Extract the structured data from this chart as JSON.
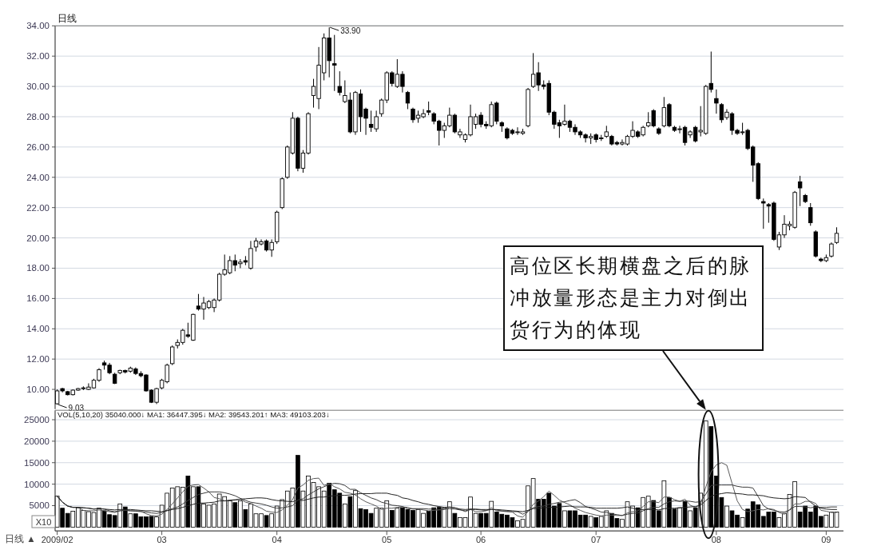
{
  "chart_data": [
    {
      "type": "candlestick",
      "title": "日线",
      "categories": [
        "2009/02",
        null,
        null,
        null,
        null,
        null,
        null,
        null,
        null,
        null,
        null,
        null,
        null,
        null,
        null,
        null,
        null,
        null,
        null,
        null,
        "03",
        null,
        null,
        null,
        null,
        null,
        null,
        null,
        null,
        null,
        null,
        null,
        null,
        null,
        null,
        null,
        null,
        null,
        null,
        null,
        null,
        null,
        "04",
        null,
        null,
        null,
        null,
        null,
        null,
        null,
        null,
        null,
        null,
        null,
        null,
        null,
        null,
        null,
        null,
        null,
        null,
        null,
        null,
        "05",
        null,
        null,
        null,
        null,
        null,
        null,
        null,
        null,
        null,
        null,
        null,
        null,
        null,
        null,
        null,
        null,
        null,
        "06",
        null,
        null,
        null,
        null,
        null,
        null,
        null,
        null,
        null,
        null,
        null,
        null,
        null,
        null,
        null,
        null,
        null,
        null,
        null,
        null,
        null,
        "07",
        null,
        null,
        null,
        null,
        null,
        null,
        null,
        null,
        null,
        null,
        null,
        null,
        null,
        null,
        null,
        null,
        null,
        null,
        null,
        null,
        null,
        null,
        "08",
        null,
        null,
        null,
        null,
        null,
        null,
        null,
        null,
        null,
        null,
        null,
        null,
        null,
        null,
        null,
        null,
        null,
        null,
        null,
        null,
        "09",
        null,
        null
      ],
      "ohlc": [
        [
          9.05,
          10.0,
          9.0,
          9.9
        ],
        [
          10.05,
          10.1,
          9.8,
          9.9
        ],
        [
          9.85,
          9.9,
          9.6,
          9.65
        ],
        [
          9.65,
          10.0,
          9.6,
          9.95
        ],
        [
          9.95,
          10.1,
          9.9,
          10.05
        ],
        [
          10.05,
          10.2,
          9.95,
          10.1
        ],
        [
          10.0,
          10.4,
          9.95,
          10.15
        ],
        [
          10.1,
          10.7,
          10.05,
          10.6
        ],
        [
          10.6,
          11.4,
          10.5,
          11.3
        ],
        [
          11.75,
          11.9,
          11.3,
          11.6
        ],
        [
          11.6,
          11.75,
          11.0,
          11.1
        ],
        [
          11.0,
          11.1,
          10.35,
          10.4
        ],
        [
          11.1,
          11.3,
          11.0,
          11.25
        ],
        [
          11.25,
          11.3,
          11.05,
          11.15
        ],
        [
          11.2,
          11.5,
          11.1,
          11.4
        ],
        [
          11.35,
          11.45,
          10.95,
          11.05
        ],
        [
          11.05,
          11.2,
          10.8,
          10.9
        ],
        [
          10.95,
          11.0,
          9.85,
          9.9
        ],
        [
          9.95,
          10.0,
          9.1,
          9.15
        ],
        [
          9.15,
          10.1,
          9.03,
          10.05
        ],
        [
          10.1,
          10.7,
          10.0,
          10.6
        ],
        [
          10.5,
          11.7,
          10.4,
          11.6
        ],
        [
          11.7,
          12.9,
          11.6,
          12.8
        ],
        [
          12.9,
          13.3,
          12.7,
          13.1
        ],
        [
          13.1,
          14.0,
          12.95,
          13.9
        ],
        [
          13.6,
          14.4,
          13.4,
          13.5
        ],
        [
          13.25,
          15.0,
          13.2,
          14.95
        ],
        [
          15.5,
          16.3,
          15.2,
          15.3
        ],
        [
          15.3,
          16.1,
          14.6,
          15.7
        ],
        [
          15.4,
          15.9,
          15.3,
          15.8
        ],
        [
          15.4,
          16.0,
          15.1,
          15.9
        ],
        [
          15.9,
          17.7,
          15.8,
          17.6
        ],
        [
          17.6,
          18.9,
          17.5,
          17.9
        ],
        [
          17.7,
          18.8,
          17.6,
          18.5
        ],
        [
          18.5,
          18.9,
          17.8,
          18.2
        ],
        [
          18.3,
          18.6,
          18.0,
          18.4
        ],
        [
          18.5,
          18.8,
          18.2,
          18.4
        ],
        [
          18.0,
          19.8,
          17.9,
          19.3
        ],
        [
          19.4,
          20.0,
          19.1,
          19.8
        ],
        [
          19.6,
          19.9,
          19.5,
          19.75
        ],
        [
          19.8,
          19.9,
          19.1,
          19.2
        ],
        [
          19.2,
          19.9,
          18.75,
          19.7
        ],
        [
          19.75,
          21.8,
          19.6,
          21.7
        ],
        [
          22.0,
          24.0,
          21.9,
          23.9
        ],
        [
          24.0,
          26.1,
          23.9,
          26.0
        ],
        [
          25.6,
          28.3,
          25.5,
          27.9
        ],
        [
          27.9,
          28.0,
          24.4,
          24.6
        ],
        [
          24.6,
          25.8,
          24.3,
          25.6
        ],
        [
          25.6,
          28.3,
          25.5,
          28.2
        ],
        [
          29.4,
          30.5,
          28.6,
          30.0
        ],
        [
          29.2,
          32.6,
          28.5,
          31.4
        ],
        [
          30.9,
          33.5,
          30.4,
          33.2
        ],
        [
          33.2,
          33.9,
          30.6,
          31.7
        ],
        [
          31.5,
          33.4,
          29.7,
          31.4
        ],
        [
          30.0,
          31.0,
          29.4,
          29.6
        ],
        [
          29.0,
          30.4,
          28.9,
          29.4
        ],
        [
          29.1,
          29.6,
          26.9,
          27.0
        ],
        [
          27.0,
          29.7,
          26.8,
          29.6
        ],
        [
          29.5,
          29.8,
          27.0,
          28.0
        ],
        [
          28.5,
          28.6,
          26.8,
          27.9
        ],
        [
          27.5,
          28.4,
          27.0,
          27.3
        ],
        [
          27.2,
          28.4,
          27.0,
          28.0
        ],
        [
          28.2,
          29.2,
          28.0,
          29.1
        ],
        [
          29.1,
          31.0,
          28.9,
          30.9
        ],
        [
          30.9,
          31.0,
          30.0,
          30.2
        ],
        [
          30.0,
          31.8,
          29.9,
          30.8
        ],
        [
          30.8,
          31.0,
          29.6,
          30.0
        ],
        [
          29.6,
          29.7,
          28.5,
          28.9
        ],
        [
          28.5,
          28.6,
          27.6,
          27.8
        ],
        [
          27.9,
          28.4,
          27.6,
          28.1
        ],
        [
          28.0,
          28.5,
          27.9,
          28.2
        ],
        [
          28.4,
          29.0,
          28.1,
          28.3
        ],
        [
          28.2,
          28.3,
          27.5,
          27.7
        ],
        [
          27.7,
          27.8,
          26.1,
          27.1
        ],
        [
          27.1,
          27.6,
          26.6,
          27.4
        ],
        [
          27.4,
          28.6,
          27.3,
          28.1
        ],
        [
          28.1,
          28.2,
          26.9,
          27.0
        ],
        [
          26.8,
          27.2,
          26.6,
          27.0
        ],
        [
          26.5,
          26.9,
          26.3,
          26.8
        ],
        [
          26.8,
          28.8,
          26.7,
          28.0
        ],
        [
          27.5,
          28.2,
          27.2,
          28.0
        ],
        [
          28.1,
          28.3,
          27.3,
          27.5
        ],
        [
          27.5,
          27.7,
          27.2,
          27.4
        ],
        [
          27.4,
          29.0,
          27.3,
          28.8
        ],
        [
          28.9,
          29.0,
          27.5,
          27.7
        ],
        [
          27.6,
          27.7,
          27.0,
          27.4
        ],
        [
          27.2,
          27.3,
          26.5,
          26.6
        ],
        [
          27.1,
          27.2,
          26.8,
          26.9
        ],
        [
          27.0,
          27.3,
          26.8,
          27.0
        ],
        [
          26.9,
          27.2,
          26.8,
          27.0
        ],
        [
          27.4,
          29.9,
          27.3,
          29.8
        ],
        [
          30.0,
          32.2,
          29.9,
          30.8
        ],
        [
          30.9,
          31.6,
          29.7,
          30.1
        ],
        [
          30.1,
          30.4,
          29.8,
          30.0
        ],
        [
          30.2,
          30.4,
          28.1,
          28.3
        ],
        [
          28.3,
          28.4,
          27.2,
          27.5
        ],
        [
          27.6,
          27.8,
          26.6,
          27.4
        ],
        [
          27.5,
          28.8,
          27.4,
          27.7
        ],
        [
          27.7,
          27.8,
          27.0,
          27.3
        ],
        [
          27.3,
          27.5,
          26.8,
          27.0
        ],
        [
          27.0,
          27.1,
          26.6,
          26.8
        ],
        [
          26.8,
          26.9,
          26.3,
          26.6
        ],
        [
          26.6,
          26.9,
          26.2,
          26.7
        ],
        [
          26.8,
          26.9,
          26.3,
          26.5
        ],
        [
          26.6,
          26.8,
          26.4,
          26.6
        ],
        [
          26.7,
          27.4,
          26.6,
          27.0
        ],
        [
          26.7,
          26.8,
          26.1,
          26.2
        ],
        [
          26.3,
          26.4,
          26.1,
          26.2
        ],
        [
          26.2,
          26.5,
          26.1,
          26.3
        ],
        [
          26.2,
          26.8,
          26.1,
          26.7
        ],
        [
          26.7,
          27.7,
          26.6,
          27.1
        ],
        [
          27.0,
          27.1,
          26.6,
          26.7
        ],
        [
          26.8,
          27.4,
          26.7,
          27.3
        ],
        [
          27.4,
          28.3,
          27.3,
          27.6
        ],
        [
          28.4,
          28.5,
          27.3,
          27.4
        ],
        [
          27.2,
          27.3,
          26.8,
          26.9
        ],
        [
          27.4,
          29.3,
          27.3,
          28.6
        ],
        [
          28.8,
          28.9,
          27.3,
          27.4
        ],
        [
          27.3,
          27.4,
          27.0,
          27.1
        ],
        [
          27.2,
          27.4,
          26.9,
          27.2
        ],
        [
          27.3,
          27.4,
          26.1,
          26.3
        ],
        [
          26.8,
          27.1,
          26.6,
          27.0
        ],
        [
          27.3,
          27.4,
          26.3,
          26.4
        ],
        [
          27.0,
          28.7,
          26.7,
          27.1
        ],
        [
          26.9,
          30.1,
          26.8,
          30.0
        ],
        [
          30.2,
          32.3,
          29.6,
          29.8
        ],
        [
          29.2,
          29.8,
          28.2,
          28.9
        ],
        [
          28.8,
          28.9,
          27.6,
          27.8
        ],
        [
          27.95,
          28.5,
          27.8,
          28.3
        ],
        [
          28.2,
          28.3,
          26.8,
          27.1
        ],
        [
          27.1,
          27.2,
          26.8,
          26.9
        ],
        [
          27.0,
          27.6,
          26.8,
          27.0
        ],
        [
          27.1,
          27.2,
          25.8,
          25.9
        ],
        [
          26.0,
          26.1,
          23.7,
          24.8
        ],
        [
          24.9,
          25.0,
          22.5,
          22.6
        ],
        [
          22.4,
          22.6,
          20.6,
          22.3
        ],
        [
          22.2,
          22.3,
          21.0,
          22.1
        ],
        [
          22.3,
          22.4,
          19.8,
          19.9
        ],
        [
          19.4,
          20.4,
          19.2,
          20.2
        ],
        [
          20.2,
          21.5,
          20.0,
          20.9
        ],
        [
          20.8,
          21.1,
          20.5,
          20.9
        ],
        [
          20.7,
          23.1,
          20.6,
          23.0
        ],
        [
          23.7,
          24.1,
          22.1,
          23.3
        ],
        [
          22.8,
          22.9,
          22.3,
          22.4
        ],
        [
          22.0,
          22.3,
          20.8,
          21.0
        ],
        [
          20.4,
          20.5,
          18.7,
          18.8
        ],
        [
          18.6,
          18.7,
          18.4,
          18.5
        ],
        [
          18.5,
          18.9,
          18.4,
          18.7
        ],
        [
          18.8,
          19.7,
          18.7,
          19.6
        ],
        [
          19.7,
          20.7,
          19.6,
          20.3
        ]
      ],
      "ylim": [
        8.7,
        34.0
      ],
      "yticks": [
        {
          "value": 10,
          "label": "10.00"
        },
        {
          "value": 12,
          "label": "12.00"
        },
        {
          "value": 14,
          "label": "14.00"
        },
        {
          "value": 16,
          "label": "16.00"
        },
        {
          "value": 18,
          "label": "18.00"
        },
        {
          "value": 20,
          "label": "20.00"
        },
        {
          "value": 22,
          "label": "22.00"
        },
        {
          "value": 24,
          "label": "24.00"
        },
        {
          "value": 26,
          "label": "26.00"
        },
        {
          "value": 28,
          "label": "28.00"
        },
        {
          "value": 30,
          "label": "30.00"
        },
        {
          "value": 32,
          "label": "32.00"
        },
        {
          "value": 34,
          "label": "34.00"
        }
      ],
      "grid": "y",
      "tick_labels": "y",
      "annotations": [
        "33.90",
        "9.03"
      ]
    },
    {
      "type": "bar",
      "title": "VOL(5,10,20) 35040.000↓ MA1: 36447.395↓ MA2: 39543.201↑ MA3: 49103.203↓",
      "categories": [
        "2009/02",
        null,
        null,
        null,
        null,
        null,
        null,
        null,
        null,
        null,
        null,
        null,
        null,
        null,
        null,
        null,
        null,
        null,
        null,
        null,
        "03",
        null,
        null,
        null,
        null,
        null,
        null,
        null,
        null,
        null,
        null,
        null,
        null,
        null,
        null,
        null,
        null,
        null,
        null,
        null,
        null,
        null,
        "04",
        null,
        null,
        null,
        null,
        null,
        null,
        null,
        null,
        null,
        null,
        null,
        null,
        null,
        null,
        null,
        null,
        null,
        null,
        null,
        null,
        "05",
        null,
        null,
        null,
        null,
        null,
        null,
        null,
        null,
        null,
        null,
        null,
        null,
        null,
        null,
        null,
        null,
        null,
        "06",
        null,
        null,
        null,
        null,
        null,
        null,
        null,
        null,
        null,
        null,
        null,
        null,
        null,
        null,
        null,
        null,
        null,
        null,
        null,
        null,
        null,
        "07",
        null,
        null,
        null,
        null,
        null,
        null,
        null,
        null,
        null,
        null,
        null,
        null,
        null,
        null,
        null,
        null,
        null,
        null,
        null,
        null,
        null,
        null,
        "08",
        null,
        null,
        null,
        null,
        null,
        null,
        null,
        null,
        null,
        null,
        null,
        null,
        null,
        null,
        null,
        null,
        null,
        null,
        null,
        null,
        "09",
        null,
        null
      ],
      "series": [
        {
          "type": "bar",
          "values": [
            7200,
            4400,
            3200,
            3700,
            4500,
            3900,
            3600,
            3400,
            4400,
            3800,
            2900,
            2700,
            5400,
            4700,
            3100,
            3100,
            2400,
            2400,
            2500,
            2400,
            5100,
            7900,
            9100,
            9400,
            9300,
            11900,
            9400,
            9400,
            5400,
            5100,
            5400,
            7700,
            7100,
            6100,
            5700,
            6100,
            4100,
            5400,
            3100,
            3100,
            2700,
            3100,
            4900,
            6400,
            8400,
            9100,
            16700,
            8400,
            11900,
            10400,
            9400,
            8400,
            10200,
            8700,
            7900,
            5400,
            7100,
            8500,
            4300,
            4100,
            3200,
            4400,
            4400,
            6100,
            3900,
            4400,
            4500,
            4100,
            3900,
            4100,
            3200,
            3700,
            4500,
            4600,
            4500,
            5900,
            3200,
            2200,
            2200,
            7000,
            3200,
            3200,
            3200,
            6000,
            3500,
            3000,
            2800,
            2200,
            1500,
            1800,
            9600,
            11300,
            6500,
            6500,
            7900,
            4900,
            5500,
            3800,
            3800,
            3800,
            2800,
            2800,
            2500,
            2200,
            2500,
            3800,
            3200,
            2000,
            1800,
            5900,
            4900,
            4500,
            6900,
            7200,
            6200,
            3800,
            10800,
            6900,
            4200,
            4500,
            5900,
            3800,
            4500,
            7900,
            24700,
            23400,
            11900,
            6900,
            4900,
            3800,
            2800,
            2200,
            4200,
            5900,
            5200,
            2500,
            3500,
            3500,
            2200,
            3200,
            7600,
            10600,
            3500,
            4900,
            3500,
            4900,
            2500,
            2800,
            3500,
            3500
          ],
          "colors": [
            "#ffffff",
            "#000000",
            "#000000",
            "#ffffff",
            "#ffffff",
            "#ffffff",
            "#ffffff",
            "#ffffff",
            "#ffffff",
            "#000000",
            "#000000",
            "#000000",
            "#ffffff",
            "#000000",
            "#ffffff",
            "#000000",
            "#000000",
            "#000000",
            "#000000",
            "#ffffff",
            "#ffffff",
            "#ffffff",
            "#ffffff",
            "#ffffff",
            "#ffffff",
            "#000000",
            "#ffffff",
            "#000000",
            "#ffffff",
            "#ffffff",
            "#ffffff",
            "#ffffff",
            "#ffffff",
            "#ffffff",
            "#000000",
            "#ffffff",
            "#000000",
            "#ffffff",
            "#ffffff",
            "#ffffff",
            "#000000",
            "#ffffff",
            "#ffffff",
            "#ffffff",
            "#ffffff",
            "#ffffff",
            "#000000",
            "#ffffff",
            "#ffffff",
            "#ffffff",
            "#ffffff",
            "#ffffff",
            "#000000",
            "#000000",
            "#000000",
            "#ffffff",
            "#000000",
            "#ffffff",
            "#000000",
            "#000000",
            "#000000",
            "#ffffff",
            "#ffffff",
            "#ffffff",
            "#000000",
            "#ffffff",
            "#000000",
            "#000000",
            "#000000",
            "#ffffff",
            "#ffffff",
            "#000000",
            "#000000",
            "#000000",
            "#ffffff",
            "#ffffff",
            "#000000",
            "#ffffff",
            "#ffffff",
            "#ffffff",
            "#ffffff",
            "#000000",
            "#000000",
            "#ffffff",
            "#000000",
            "#000000",
            "#000000",
            "#000000",
            "#ffffff",
            "#ffffff",
            "#ffffff",
            "#ffffff",
            "#000000",
            "#000000",
            "#000000",
            "#000000",
            "#000000",
            "#ffffff",
            "#000000",
            "#000000",
            "#000000",
            "#000000",
            "#ffffff",
            "#000000",
            "#ffffff",
            "#ffffff",
            "#000000",
            "#000000",
            "#ffffff",
            "#ffffff",
            "#ffffff",
            "#000000",
            "#ffffff",
            "#ffffff",
            "#000000",
            "#000000",
            "#ffffff",
            "#000000",
            "#000000",
            "#ffffff",
            "#000000",
            "#ffffff",
            "#000000",
            "#ffffff",
            "#ffffff",
            "#000000",
            "#000000",
            "#000000",
            "#ffffff",
            "#000000",
            "#000000",
            "#ffffff",
            "#000000",
            "#000000",
            "#000000",
            "#000000",
            "#000000",
            "#000000",
            "#ffffff",
            "#ffffff",
            "#ffffff",
            "#ffffff",
            "#000000",
            "#000000",
            "#000000",
            "#000000",
            "#000000",
            "#ffffff",
            "#ffffff",
            "#ffffff"
          ]
        },
        {
          "type": "line",
          "color": "#5a5a5a",
          "values": [
            7200,
            5800,
            4900,
            4600,
            4600,
            3900,
            3800,
            3800,
            4000,
            3800,
            3600,
            3400,
            3800,
            3900,
            3800,
            3800,
            3700,
            3100,
            2700,
            2600,
            3000,
            4100,
            5400,
            6800,
            8200,
            9500,
            9800,
            9900,
            9100,
            8200,
            6900,
            6600,
            6100,
            6300,
            6400,
            6500,
            5800,
            5500,
            4900,
            4400,
            3700,
            3500,
            3400,
            4000,
            5100,
            6400,
            9100,
            9800,
            10900,
            11300,
            11400,
            9700,
            10100,
            9400,
            8900,
            8100,
            7900,
            7500,
            6600,
            5900,
            5400,
            4900,
            4100,
            4400,
            4400,
            4600,
            4700,
            4600,
            4200,
            4200,
            4000,
            3800,
            3900,
            4000,
            4100,
            4600,
            4500,
            4100,
            3600,
            4100,
            3600,
            3600,
            3800,
            4500,
            3800,
            3800,
            3700,
            3500,
            2600,
            2300,
            3600,
            5300,
            6100,
            7100,
            8400,
            7400,
            6300,
            5700,
            5200,
            4400,
            3900,
            3400,
            3100,
            2800,
            2600,
            2800,
            2800,
            2700,
            2700,
            3300,
            3600,
            3800,
            4800,
            5900,
            5900,
            5700,
            7000,
            7000,
            6400,
            6000,
            6500,
            5100,
            4600,
            5300,
            9400,
            12900,
            14500,
            15000,
            14400,
            10200,
            6100,
            4100,
            3600,
            3800,
            4100,
            4000,
            4300,
            4100,
            3400,
            3000,
            4000,
            5400,
            5400,
            6000,
            6000,
            5500,
            3900,
            3700,
            3400,
            3400
          ]
        },
        {
          "type": "line",
          "color": "#3c3c3c",
          "values": [
            7200,
            5800,
            4900,
            4600,
            4600,
            4500,
            4400,
            4200,
            4300,
            4200,
            3800,
            3600,
            3800,
            3900,
            3800,
            3700,
            3600,
            3500,
            3300,
            3200,
            3400,
            3900,
            4300,
            4700,
            5400,
            6200,
            6900,
            7600,
            7900,
            8200,
            8200,
            8200,
            8000,
            7700,
            7300,
            6700,
            6200,
            5800,
            5600,
            5400,
            5100,
            4700,
            4400,
            4500,
            4700,
            5000,
            6300,
            6600,
            7500,
            8200,
            8900,
            9400,
            9900,
            10200,
            10100,
            9700,
            8800,
            8800,
            8000,
            7400,
            6800,
            6400,
            5800,
            5500,
            5100,
            5000,
            4800,
            4300,
            4300,
            4300,
            4300,
            4200,
            4200,
            4100,
            4200,
            4300,
            4200,
            4000,
            3800,
            4100,
            4100,
            4000,
            3900,
            4100,
            4000,
            3700,
            3600,
            3600,
            3600,
            3000,
            3700,
            4500,
            4800,
            4900,
            5300,
            5500,
            5800,
            5900,
            6200,
            6400,
            5700,
            4800,
            4400,
            4000,
            3500,
            3400,
            3100,
            2900,
            2700,
            3000,
            3200,
            3300,
            3800,
            4300,
            4600,
            4600,
            5400,
            5900,
            6100,
            6000,
            6100,
            6000,
            5800,
            5900,
            7700,
            9700,
            9800,
            9800,
            9800,
            9800,
            9500,
            9300,
            9300,
            9100,
            7100,
            5000,
            4200,
            3900,
            3600,
            3500,
            4000,
            4800,
            4800,
            4700,
            4500,
            4700,
            4600,
            4600,
            4700,
            4700
          ]
        },
        {
          "type": "line",
          "color": "#222222",
          "values": [
            7200,
            5800,
            4900,
            4600,
            4600,
            4500,
            4400,
            4200,
            4300,
            4200,
            4100,
            4000,
            4100,
            4100,
            4100,
            4000,
            3900,
            3800,
            3800,
            3700,
            3600,
            3800,
            4100,
            4300,
            4600,
            5000,
            5300,
            5600,
            5600,
            5700,
            5800,
            6100,
            6100,
            6200,
            6300,
            6500,
            6600,
            6700,
            6800,
            6800,
            6700,
            6400,
            6200,
            6100,
            6000,
            5900,
            6300,
            6200,
            6500,
            6800,
            7000,
            7000,
            7200,
            7300,
            7400,
            7400,
            7500,
            7700,
            7800,
            7800,
            7800,
            7900,
            7900,
            7900,
            7600,
            7400,
            6800,
            6600,
            6200,
            5900,
            5500,
            5300,
            5000,
            4800,
            4600,
            4700,
            4500,
            4200,
            4100,
            4200,
            4200,
            4100,
            4100,
            4100,
            4100,
            4000,
            3900,
            3800,
            3700,
            3600,
            3900,
            4300,
            4400,
            4500,
            4600,
            4600,
            4700,
            4800,
            4900,
            4700,
            4700,
            4700,
            4600,
            4400,
            4400,
            4400,
            4400,
            4400,
            4500,
            4700,
            4400,
            4100,
            4100,
            4100,
            4100,
            4000,
            4300,
            4400,
            4400,
            4500,
            4600,
            4700,
            4800,
            5100,
            6200,
            7200,
            7600,
            7800,
            8000,
            7900,
            7800,
            7700,
            7500,
            7500,
            7400,
            7300,
            7000,
            6800,
            6700,
            6600,
            6700,
            7100,
            7000,
            6900,
            5800,
            4900,
            4400,
            4200,
            4100,
            4100
          ]
        }
      ],
      "ylim": [
        -900,
        27200
      ],
      "yticks": [
        5000,
        10000,
        15000,
        20000,
        25000
      ],
      "grid": "y",
      "annotations": [
        "高位区长期横盘之后的脉冲放量形态是主力对倒出货行为的体现",
        "X10",
        "日线 ▲"
      ]
    }
  ]
}
